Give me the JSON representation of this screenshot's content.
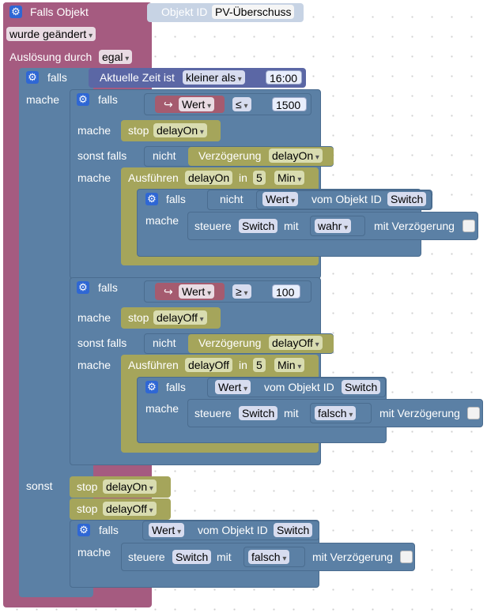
{
  "trigger": {
    "label_falls_objekt": "Falls Objekt",
    "object_id_label": "Objekt ID",
    "object_id_value": "PV-Überschuss",
    "changed_option": "wurde geändert",
    "trigger_by_label": "Auslösung durch",
    "trigger_by_value": "egal"
  },
  "outer_if": {
    "falls": "falls",
    "mache": "mache",
    "sonst": "sonst",
    "time_label": "Aktuelle Zeit ist",
    "time_op": "kleiner als",
    "time_value": "16:00"
  },
  "if1": {
    "falls": "falls",
    "wert": "Wert",
    "arrow": "↪",
    "op": "≤",
    "value": "1500",
    "mache": "mache",
    "stop_label": "stop",
    "stop_var": "delayOn",
    "sonst_falls": "sonst falls",
    "nicht": "nicht",
    "verz_label": "Verzögerung",
    "verz_var": "delayOn",
    "mache2": "mache",
    "ausf_label": "Ausführen",
    "ausf_var": "delayOn",
    "in_label": "in",
    "in_value": "5",
    "unit": "Min",
    "inner_falls": "falls",
    "inner_nicht": "nicht",
    "inner_wert": "Wert",
    "inner_vom": "vom Objekt ID",
    "inner_obj": "Switch",
    "inner_mache": "mache",
    "steuere": "steuere",
    "steuere_obj": "Switch",
    "mit": "mit",
    "steuere_val": "wahr",
    "mit_verz": "mit Verzögerung"
  },
  "if2": {
    "falls": "falls",
    "wert": "Wert",
    "arrow": "↪",
    "op": "≥",
    "value": "100",
    "mache": "mache",
    "stop_label": "stop",
    "stop_var": "delayOff",
    "sonst_falls": "sonst falls",
    "nicht": "nicht",
    "verz_label": "Verzögerung",
    "verz_var": "delayOff",
    "mache2": "mache",
    "ausf_label": "Ausführen",
    "ausf_var": "delayOff",
    "in_label": "in",
    "in_value": "5",
    "unit": "Min",
    "inner_falls": "falls",
    "inner_wert": "Wert",
    "inner_vom": "vom Objekt ID",
    "inner_obj": "Switch",
    "inner_mache": "mache",
    "steuere": "steuere",
    "steuere_obj": "Switch",
    "mit": "mit",
    "steuere_val": "falsch",
    "mit_verz": "mit Verzögerung"
  },
  "else_branch": {
    "stop1_label": "stop",
    "stop1_var": "delayOn",
    "stop2_label": "stop",
    "stop2_var": "delayOff",
    "falls": "falls",
    "wert": "Wert",
    "vom": "vom Objekt ID",
    "obj": "Switch",
    "mache": "mache",
    "steuere": "steuere",
    "steuere_obj": "Switch",
    "mit": "mit",
    "steuere_val": "falsch",
    "mit_verz": "mit Verzögerung"
  },
  "icons": {
    "gear": "⚙"
  }
}
